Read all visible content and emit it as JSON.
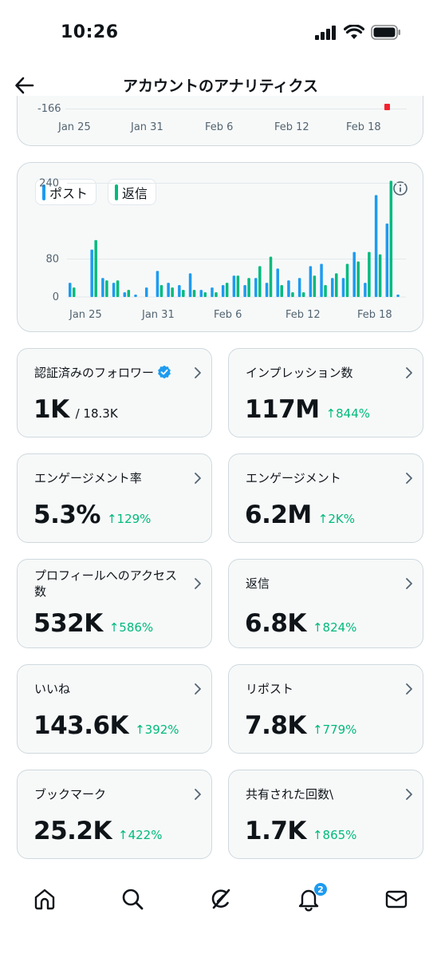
{
  "status_bar": {
    "time": "10:26"
  },
  "header": {
    "title": "アカウントのアナリティクス"
  },
  "top_chart": {
    "y_tick": "-166",
    "x_labels": [
      "Jan 25",
      "Jan 31",
      "Feb 6",
      "Feb 12",
      "Feb 18"
    ]
  },
  "activity_chart": {
    "legend": {
      "posts": "ポスト",
      "replies": "返信"
    },
    "colors": {
      "posts": "#1d9bf0",
      "replies": "#00ba7c"
    }
  },
  "chart_data": {
    "type": "bar",
    "x_labels": [
      "Jan 25",
      "Jan 31",
      "Feb 6",
      "Feb 12",
      "Feb 18"
    ],
    "y_ticks": [
      240,
      80,
      0
    ],
    "ylim": [
      0,
      260
    ],
    "series": [
      {
        "name": "ポスト",
        "values": [
          30,
          0,
          100,
          40,
          30,
          10,
          5,
          20,
          55,
          30,
          25,
          50,
          15,
          20,
          25,
          45,
          25,
          40,
          30,
          60,
          35,
          40,
          65,
          70,
          40,
          40,
          95,
          30,
          215,
          155,
          5
        ]
      },
      {
        "name": "返信",
        "values": [
          20,
          0,
          120,
          35,
          35,
          15,
          0,
          0,
          25,
          20,
          15,
          15,
          10,
          10,
          30,
          45,
          40,
          65,
          85,
          25,
          10,
          10,
          45,
          25,
          50,
          70,
          75,
          95,
          90,
          245,
          0
        ]
      }
    ]
  },
  "metrics": [
    {
      "label": "認証済みのフォロワー",
      "value": "1K",
      "sub": "/ 18.3K",
      "verified": true
    },
    {
      "label": "インプレッション数",
      "value": "117M",
      "change": "↑844%"
    },
    {
      "label": "エンゲージメント率",
      "value": "5.3%",
      "change": "↑129%"
    },
    {
      "label": "エンゲージメント",
      "value": "6.2M",
      "change": "↑2K%"
    },
    {
      "label": "プロフィールへのアクセス数",
      "value": "532K",
      "change": "↑586%"
    },
    {
      "label": "返信",
      "value": "6.8K",
      "change": "↑824%"
    },
    {
      "label": "いいね",
      "value": "143.6K",
      "change": "↑392%"
    },
    {
      "label": "リポスト",
      "value": "7.8K",
      "change": "↑779%"
    },
    {
      "label": "ブックマーク",
      "value": "25.2K",
      "change": "↑422%"
    },
    {
      "label": "共有された回数\\",
      "value": "1.7K",
      "change": "↑865%"
    }
  ],
  "bottom_nav": {
    "notification_badge": "2",
    "items": [
      "home-icon",
      "search-icon",
      "grok-icon",
      "bell-icon",
      "mail-icon"
    ]
  }
}
